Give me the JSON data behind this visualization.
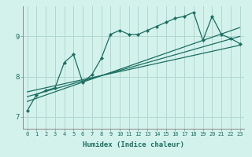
{
  "xlabel": "Humidex (Indice chaleur)",
  "bg_color": "#d4f2ec",
  "grid_color": "#aed8d0",
  "line_color": "#1a6e60",
  "xlim": [
    -0.5,
    23.5
  ],
  "ylim": [
    6.7,
    9.75
  ],
  "xticks": [
    0,
    1,
    2,
    3,
    4,
    5,
    6,
    7,
    8,
    9,
    10,
    11,
    12,
    13,
    14,
    15,
    16,
    17,
    18,
    19,
    20,
    21,
    22,
    23
  ],
  "yticks": [
    7,
    8,
    9
  ],
  "line1_x": [
    0,
    1,
    2,
    3,
    4,
    5,
    6,
    7,
    8,
    9,
    10,
    11,
    12,
    13,
    14,
    15,
    16,
    17,
    18,
    19,
    20,
    21,
    22,
    23
  ],
  "line1_y": [
    7.15,
    7.55,
    7.65,
    7.72,
    8.35,
    8.55,
    7.85,
    8.05,
    8.45,
    9.05,
    9.15,
    9.05,
    9.05,
    9.15,
    9.25,
    9.35,
    9.45,
    9.5,
    9.6,
    8.9,
    9.5,
    9.05,
    8.95,
    8.82
  ],
  "line2_x": [
    0,
    23
  ],
  "line2_y": [
    7.62,
    8.78
  ],
  "line3_x": [
    0,
    23
  ],
  "line3_y": [
    7.5,
    9.0
  ],
  "line4_x": [
    0,
    23
  ],
  "line4_y": [
    7.38,
    9.22
  ]
}
